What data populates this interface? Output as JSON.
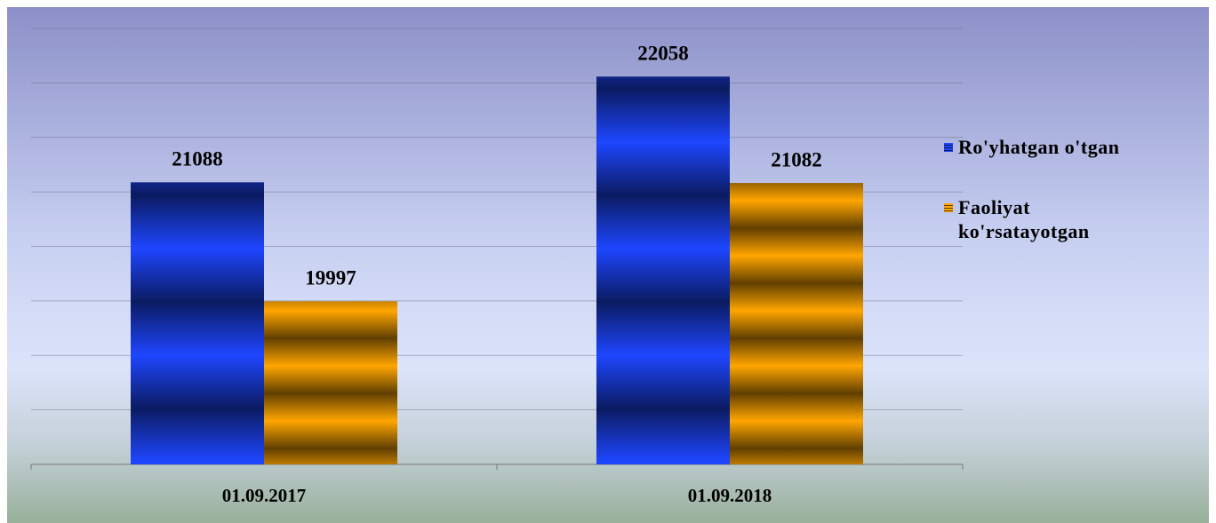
{
  "chart_data": {
    "type": "bar",
    "categories": [
      "01.09.2017",
      "01.09.2018"
    ],
    "series": [
      {
        "name": "Ro'yhatgan o'tgan",
        "color": "#1e46ff",
        "values": [
          21088,
          22058
        ]
      },
      {
        "name": "Faoliyat ko'rsatayotgan",
        "color": "#ffa600",
        "values": [
          19997,
          21082
        ]
      }
    ],
    "ylim": [
      18500,
      22500
    ],
    "yticks": [
      18500,
      19000,
      19500,
      20000,
      20500,
      21000,
      21500,
      22000,
      22500
    ],
    "grid": true,
    "legend": "right"
  }
}
